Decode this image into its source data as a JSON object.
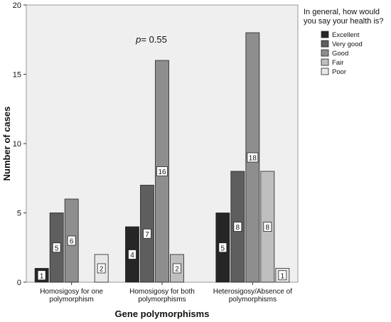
{
  "chart_data": {
    "type": "bar",
    "title": "",
    "annotation": {
      "p_label": "p",
      "p_value": "= 0.55"
    },
    "xlabel": "Gene polymorphisms",
    "ylabel": "Number of cases",
    "ylim": [
      0,
      20
    ],
    "yticks": [
      0,
      5,
      10,
      15,
      20
    ],
    "categories": [
      [
        "Homosigosy for one",
        "polymorphism"
      ],
      [
        "Homosigosy for both",
        "polymorphisms"
      ],
      [
        "Heterosigosy/Absence of",
        "polymorphisms"
      ]
    ],
    "legend_title": [
      "In general, how would",
      "you say your health is?"
    ],
    "legend_placement": "right",
    "series": [
      {
        "name": "Excellent",
        "color": "#262626",
        "values": [
          1,
          4,
          5
        ]
      },
      {
        "name": "Very good",
        "color": "#5e5e5e",
        "values": [
          5,
          7,
          8
        ]
      },
      {
        "name": "Good",
        "color": "#8e8e8e",
        "values": [
          6,
          16,
          18
        ]
      },
      {
        "name": "Fair",
        "color": "#bfbfbf",
        "values": [
          null,
          2,
          8
        ]
      },
      {
        "name": "Poor",
        "color": "#e8e8e8",
        "values": [
          2,
          null,
          1
        ]
      }
    ],
    "plot_background": "#efefef",
    "grid": false
  }
}
